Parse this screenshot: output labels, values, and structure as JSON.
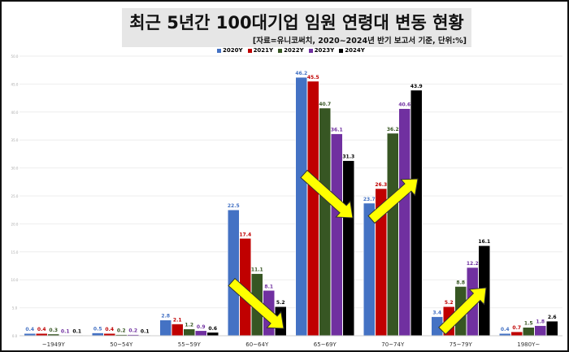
{
  "chart_data": {
    "type": "bar",
    "title": "최근 5년간 100대기업 임원 연령대 변동 현황",
    "subtitle": "[자료=유니코써치, 2020~2024년 반기 보고서 기준, 단위:%]",
    "categories": [
      "~1949Y",
      "50~54Y",
      "55~59Y",
      "60~64Y",
      "65~69Y",
      "70~74Y",
      "75~79Y",
      "1980Y~"
    ],
    "series": [
      {
        "name": "2020Y",
        "color": "#4472c4",
        "values": [
          0.4,
          0.5,
          2.8,
          22.5,
          46.2,
          23.7,
          3.4,
          0.4
        ]
      },
      {
        "name": "2021Y",
        "color": "#c00000",
        "values": [
          0.4,
          0.4,
          2.1,
          17.4,
          45.5,
          26.3,
          5.2,
          0.7
        ]
      },
      {
        "name": "2022Y",
        "color": "#375623",
        "values": [
          0.3,
          0.2,
          1.2,
          11.1,
          40.7,
          36.2,
          8.8,
          1.5
        ]
      },
      {
        "name": "2023Y",
        "color": "#7030a0",
        "values": [
          0.1,
          0.2,
          0.9,
          8.1,
          36.1,
          40.6,
          12.2,
          1.8
        ]
      },
      {
        "name": "2024Y",
        "color": "#000000",
        "values": [
          0.1,
          0.1,
          0.6,
          5.2,
          31.3,
          43.9,
          16.1,
          2.6
        ]
      }
    ],
    "ylim": [
      0,
      50
    ],
    "yticks": [
      "0.0",
      "5.0",
      "10.0",
      "15.0",
      "20.0",
      "25.0",
      "30.0",
      "35.0",
      "40.0",
      "45.0",
      "50.0"
    ],
    "grid": true,
    "legend": "top",
    "annotations": [
      "yellow arrow down 60~64Y",
      "yellow arrow down 65~69Y",
      "yellow arrow up 70~74Y",
      "yellow arrow up 75~79Y"
    ]
  }
}
